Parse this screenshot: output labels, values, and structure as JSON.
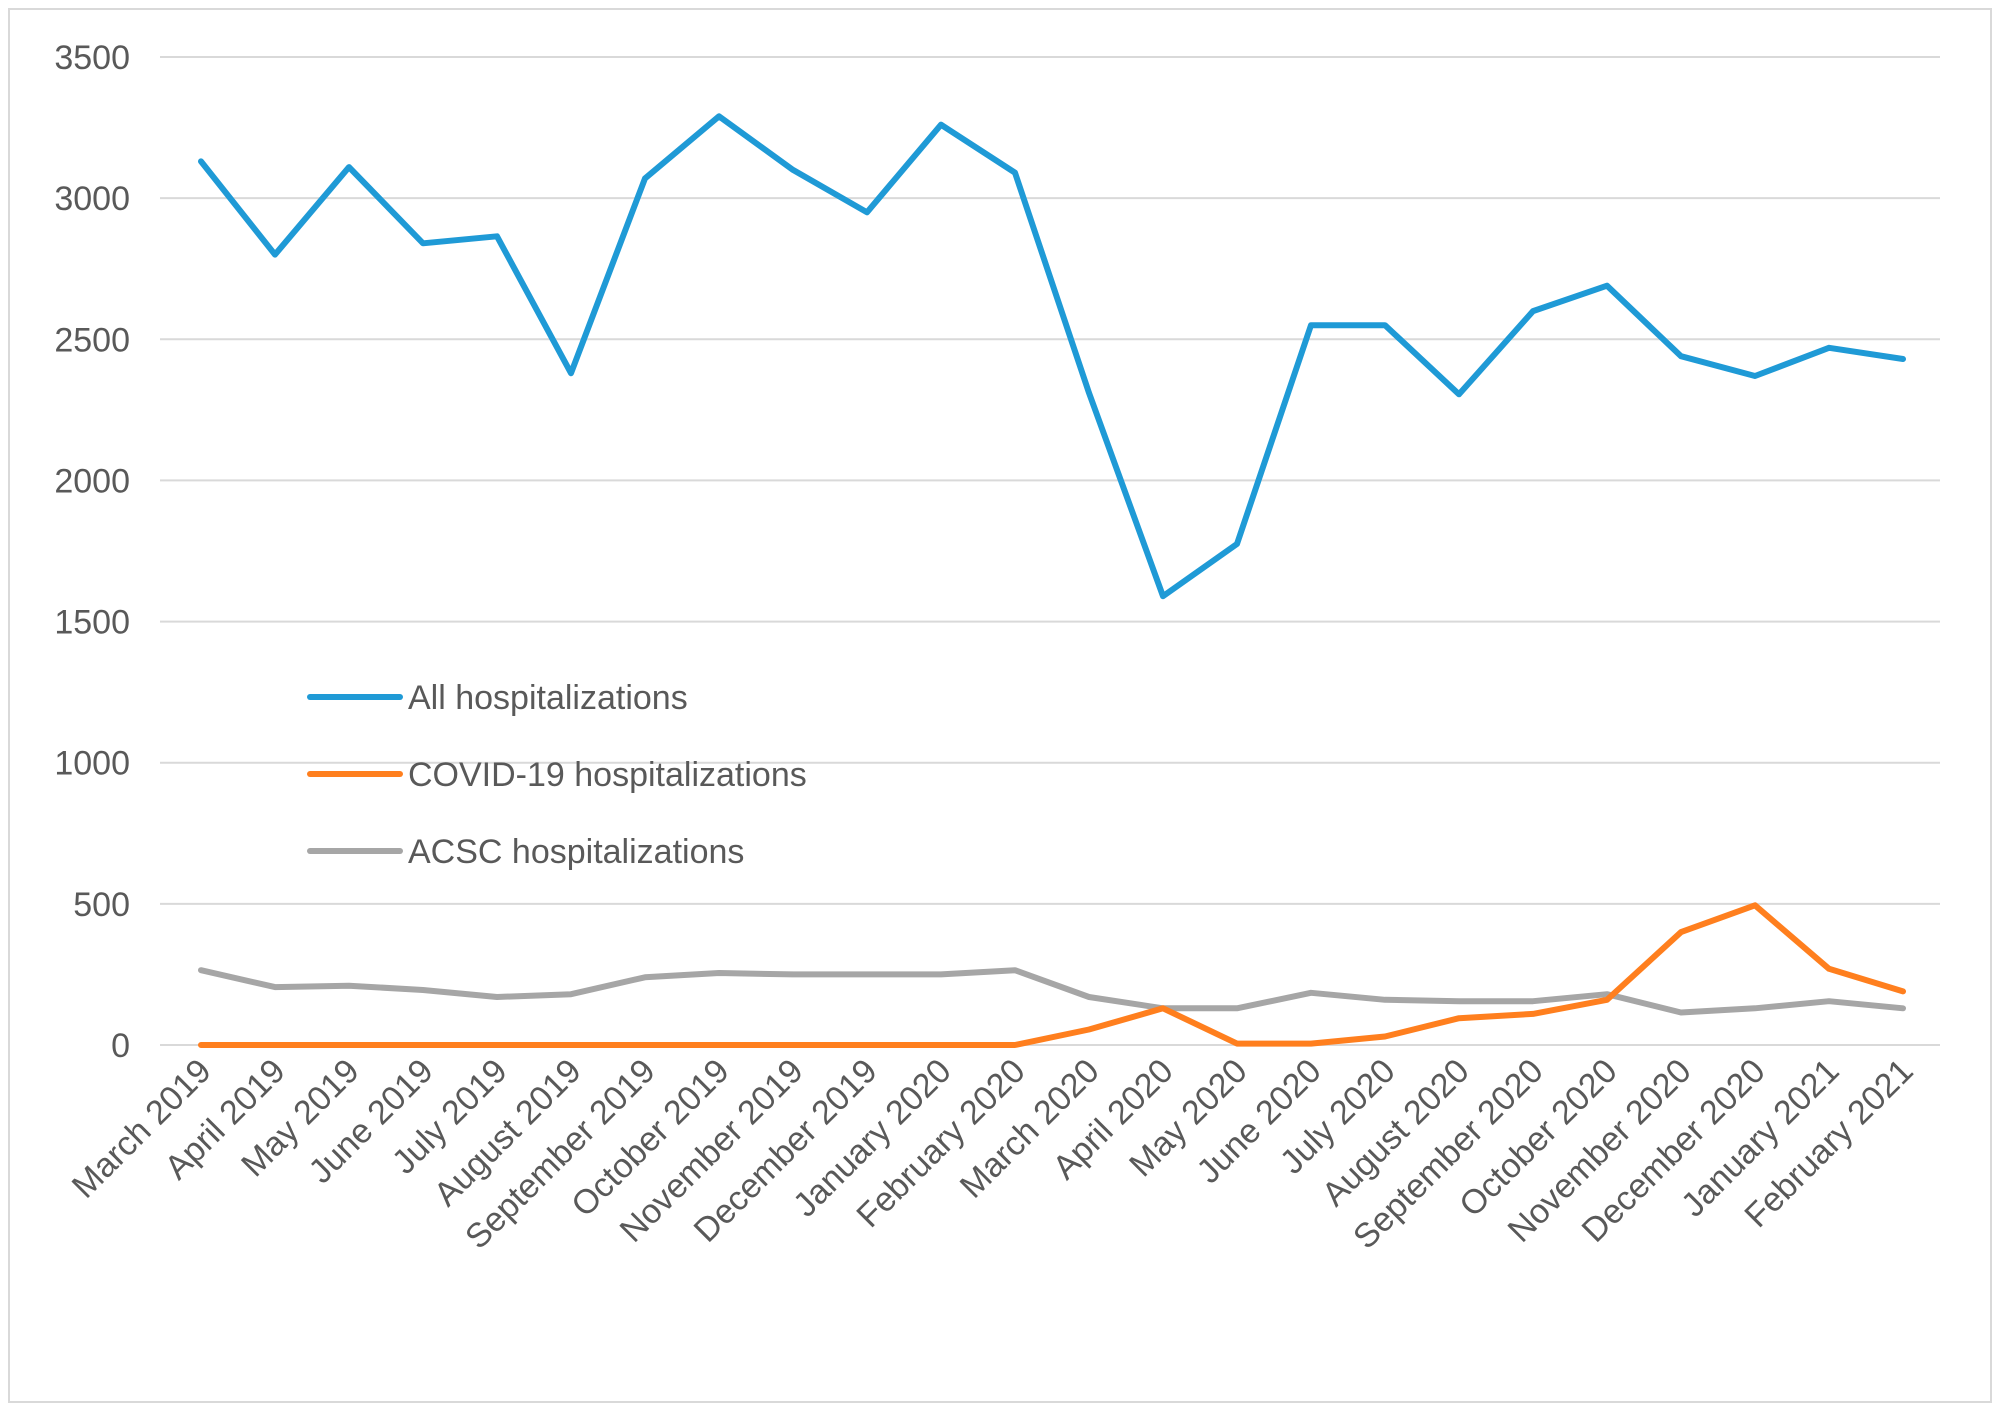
{
  "chart_data": {
    "type": "line",
    "title": "",
    "xlabel": "",
    "ylabel": "",
    "ylim": [
      0,
      3500
    ],
    "yticks": [
      0,
      500,
      1000,
      1500,
      2000,
      2500,
      3000,
      3500
    ],
    "grid": true,
    "legend_position": "middle-left",
    "categories": [
      "March 2019",
      "April 2019",
      "May 2019",
      "June 2019",
      "July 2019",
      "August 2019",
      "September 2019",
      "October 2019",
      "November 2019",
      "December 2019",
      "January 2020",
      "February 2020",
      "March 2020",
      "April 2020",
      "May 2020",
      "June 2020",
      "July 2020",
      "August 2020",
      "September 2020",
      "October 2020",
      "November 2020",
      "December 2020",
      "January 2021",
      "February 2021"
    ],
    "series": [
      {
        "name": "All hospitalizations",
        "color": "#1f9ad6",
        "values": [
          3130,
          2800,
          3110,
          2840,
          2865,
          2380,
          3070,
          3290,
          3100,
          2950,
          3260,
          3090,
          2310,
          1590,
          1775,
          2550,
          2550,
          2305,
          2600,
          2690,
          2440,
          2370,
          2470,
          2430
        ]
      },
      {
        "name": "COVID-19 hospitalizations",
        "color": "#ff7f1e",
        "values": [
          0,
          0,
          0,
          0,
          0,
          0,
          0,
          0,
          0,
          0,
          0,
          0,
          55,
          130,
          5,
          5,
          30,
          95,
          110,
          160,
          400,
          495,
          270,
          190
        ]
      },
      {
        "name": "ACSC hospitalizations",
        "color": "#a6a6a6",
        "values": [
          265,
          205,
          210,
          195,
          170,
          180,
          240,
          255,
          250,
          250,
          250,
          265,
          170,
          130,
          130,
          185,
          160,
          155,
          155,
          180,
          115,
          130,
          155,
          130
        ]
      }
    ]
  }
}
